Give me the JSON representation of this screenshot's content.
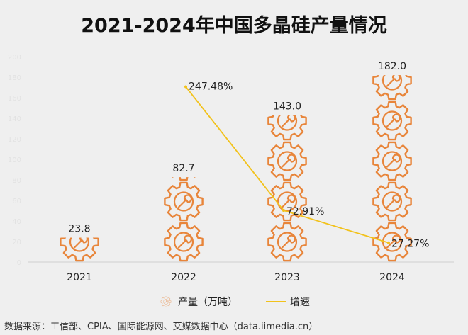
{
  "chart_data": {
    "type": "bar",
    "subtype": "pictorial-bar-with-line",
    "title": "2021-2024年中国多晶硅产量情况",
    "categories": [
      "2021",
      "2022",
      "2023",
      "2024"
    ],
    "series": [
      {
        "name": "产量（万吨）",
        "type": "pictorial-bar",
        "icon": "gear-wrench-icon",
        "color": "#e8853a",
        "values": [
          23.8,
          82.7,
          143.0,
          182.0
        ],
        "labels": [
          "23.8",
          "82.7",
          "143.0",
          "182.0"
        ]
      },
      {
        "name": "增速",
        "type": "line",
        "color": "#f2c21b",
        "values": [
          null,
          247.48,
          72.91,
          27.27
        ],
        "labels": [
          "",
          "247.48%",
          "72.91%",
          "27.27%"
        ]
      }
    ],
    "ylim": [
      0,
      200
    ],
    "y2lim": [
      0,
      300
    ],
    "yticks": [
      0,
      20,
      40,
      60,
      80,
      100,
      120,
      140,
      160,
      180,
      200
    ],
    "legend_position": "bottom",
    "grid": false
  },
  "source": "数据来源：工信部、CPIA、国际能源网、艾媒数据中心（data.iimedia.cn）"
}
